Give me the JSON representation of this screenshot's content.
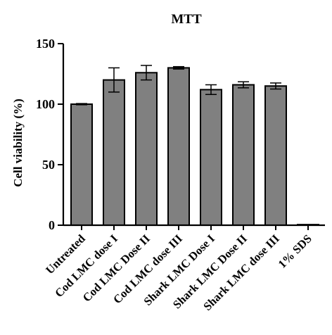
{
  "chart_data": {
    "type": "bar",
    "title": "MTT",
    "xlabel": "",
    "ylabel": "Cell viability (%)",
    "ylim": [
      0,
      150
    ],
    "yticks": [
      0,
      50,
      100,
      150
    ],
    "grid": false,
    "bar_color": "#808080",
    "categories": [
      "Untreated",
      "Cod LMC dose I",
      "Cod LMC Dose II",
      "Cod LMC dose III",
      "Shark LMC Dose I",
      "Shark LMC Dose II",
      "Shark LMC dose III",
      "1% SDS"
    ],
    "values": [
      100,
      120,
      126,
      130,
      112,
      116,
      115,
      0.5
    ],
    "errors": [
      0.5,
      10,
      6,
      1,
      4,
      2.5,
      2.5,
      0
    ]
  }
}
